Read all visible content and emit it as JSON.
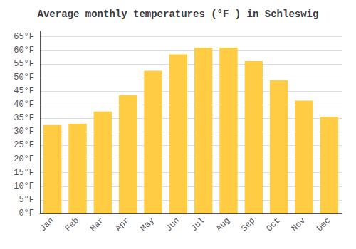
{
  "chart_data": {
    "type": "bar",
    "title": "Average monthly temperatures (°F ) in Schleswig",
    "categories": [
      "Jan",
      "Feb",
      "Mar",
      "Apr",
      "May",
      "Jun",
      "Jul",
      "Aug",
      "Sep",
      "Oct",
      "Nov",
      "Dec"
    ],
    "values": [
      32.5,
      33.0,
      37.5,
      43.5,
      52.5,
      58.5,
      61.0,
      61.0,
      56.0,
      49.0,
      41.5,
      35.5
    ],
    "color": "#FFCC44",
    "ylim": [
      0,
      67
    ],
    "yticks": [
      {
        "value": 0,
        "label": "0°F"
      },
      {
        "value": 5,
        "label": "5°F"
      },
      {
        "value": 10,
        "label": "10°F"
      },
      {
        "value": 15,
        "label": "15°F"
      },
      {
        "value": 20,
        "label": "20°F"
      },
      {
        "value": 25,
        "label": "25°F"
      },
      {
        "value": 30,
        "label": "30°F"
      },
      {
        "value": 35,
        "label": "35°F"
      },
      {
        "value": 40,
        "label": "40°F"
      },
      {
        "value": 45,
        "label": "45°F"
      },
      {
        "value": 50,
        "label": "50°F"
      },
      {
        "value": 55,
        "label": "55°F"
      },
      {
        "value": 60,
        "label": "60°F"
      },
      {
        "value": 65,
        "label": "65°F"
      }
    ],
    "grid": true
  }
}
